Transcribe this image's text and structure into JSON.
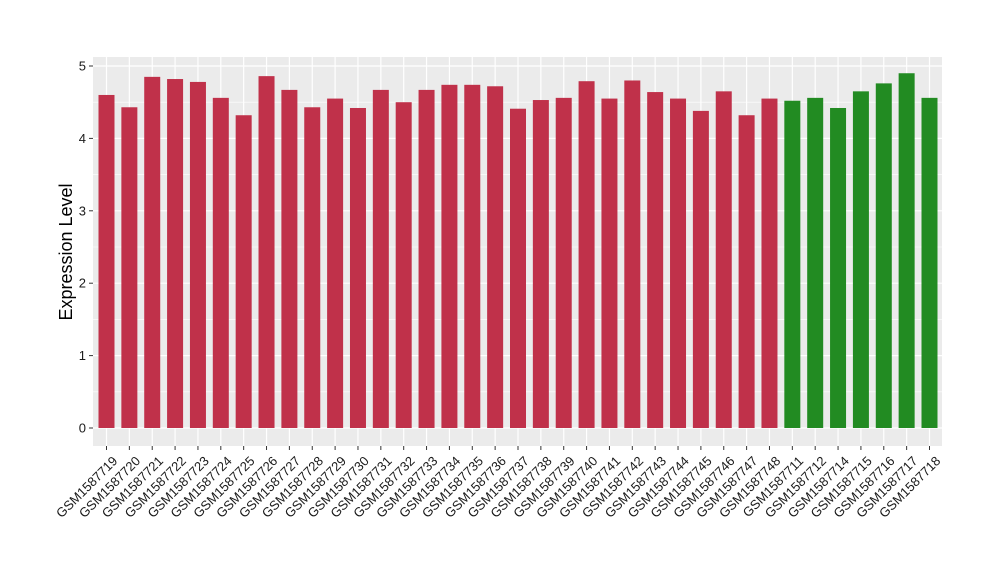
{
  "chart_data": {
    "type": "bar",
    "title": "",
    "xlabel": "",
    "ylabel": "Expression Level",
    "ylim": [
      0,
      5
    ],
    "y_ticks": [
      "0",
      "1",
      "2",
      "3",
      "4",
      "5"
    ],
    "grid": true,
    "legend": "none",
    "panel_background": "#ebebeb",
    "gridline_color": "#ffffff",
    "categories": [
      "GSM1587719",
      "GSM1587720",
      "GSM1587721",
      "GSM1587722",
      "GSM1587723",
      "GSM1587724",
      "GSM1587725",
      "GSM1587726",
      "GSM1587727",
      "GSM1587728",
      "GSM1587729",
      "GSM1587730",
      "GSM1587731",
      "GSM1587732",
      "GSM1587733",
      "GSM1587734",
      "GSM1587735",
      "GSM1587736",
      "GSM1587737",
      "GSM1587738",
      "GSM1587739",
      "GSM1587740",
      "GSM1587741",
      "GSM1587742",
      "GSM1587743",
      "GSM1587744",
      "GSM1587745",
      "GSM1587746",
      "GSM1587747",
      "GSM1587748",
      "GSM1587711",
      "GSM1587712",
      "GSM1587714",
      "GSM1587715",
      "GSM1587716",
      "GSM1587717",
      "GSM1587718"
    ],
    "values": [
      4.6,
      4.43,
      4.85,
      4.82,
      4.78,
      4.56,
      4.32,
      4.86,
      4.67,
      4.43,
      4.55,
      4.42,
      4.67,
      4.5,
      4.67,
      4.74,
      4.74,
      4.72,
      4.41,
      4.53,
      4.56,
      4.79,
      4.55,
      4.8,
      4.64,
      4.55,
      4.38,
      4.65,
      4.32,
      4.55,
      4.52,
      4.56,
      4.42,
      4.65,
      4.76,
      4.9,
      4.56
    ],
    "bar_colors": [
      "#c0314a",
      "#c0314a",
      "#c0314a",
      "#c0314a",
      "#c0314a",
      "#c0314a",
      "#c0314a",
      "#c0314a",
      "#c0314a",
      "#c0314a",
      "#c0314a",
      "#c0314a",
      "#c0314a",
      "#c0314a",
      "#c0314a",
      "#c0314a",
      "#c0314a",
      "#c0314a",
      "#c0314a",
      "#c0314a",
      "#c0314a",
      "#c0314a",
      "#c0314a",
      "#c0314a",
      "#c0314a",
      "#c0314a",
      "#c0314a",
      "#c0314a",
      "#c0314a",
      "#c0314a",
      "#228b22",
      "#228b22",
      "#228b22",
      "#228b22",
      "#228b22",
      "#228b22",
      "#228b22"
    ]
  }
}
